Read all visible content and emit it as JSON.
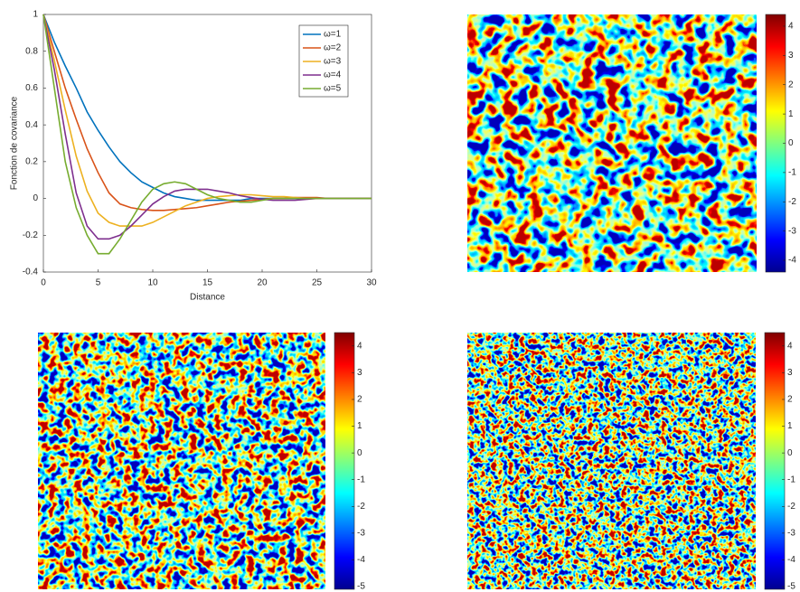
{
  "chart_data": [
    {
      "type": "line",
      "x_label": "Distance",
      "y_label": "Fonction de covariance",
      "x": [
        0,
        1,
        2,
        3,
        4,
        5,
        6,
        7,
        8,
        9,
        10,
        11,
        12,
        13,
        14,
        15,
        16,
        17,
        18,
        19,
        20,
        21,
        22,
        23,
        24,
        25,
        26,
        27,
        28,
        29,
        30
      ],
      "series": [
        {
          "name": "ω=1",
          "color": "#0072bd",
          "values": [
            1,
            0.85,
            0.72,
            0.6,
            0.47,
            0.37,
            0.28,
            0.2,
            0.14,
            0.09,
            0.06,
            0.03,
            0.01,
            0,
            -0.01,
            -0.01,
            -0.01,
            -0.01,
            -0.01,
            0,
            0,
            0,
            0,
            0,
            0,
            0,
            0,
            0,
            0,
            0,
            0
          ]
        },
        {
          "name": "ω=2",
          "color": "#d95319",
          "values": [
            1,
            0.8,
            0.6,
            0.43,
            0.27,
            0.14,
            0.03,
            -0.03,
            -0.05,
            -0.06,
            -0.065,
            -0.065,
            -0.06,
            -0.055,
            -0.05,
            -0.04,
            -0.03,
            -0.02,
            -0.015,
            -0.01,
            -0.005,
            0,
            0,
            0.005,
            0.005,
            0.005,
            0,
            0,
            0,
            0,
            0
          ]
        },
        {
          "name": "ω=3",
          "color": "#edb120",
          "values": [
            1,
            0.75,
            0.48,
            0.23,
            0.04,
            -0.08,
            -0.13,
            -0.15,
            -0.15,
            -0.15,
            -0.13,
            -0.1,
            -0.07,
            -0.04,
            -0.02,
            0,
            0.01,
            0.015,
            0.02,
            0.02,
            0.015,
            0.01,
            0.01,
            0.005,
            0,
            0,
            0,
            0,
            0,
            0,
            0
          ]
        },
        {
          "name": "ω=4",
          "color": "#7e2f8e",
          "values": [
            1,
            0.7,
            0.35,
            0.03,
            -0.15,
            -0.22,
            -0.22,
            -0.2,
            -0.15,
            -0.09,
            -0.03,
            0.01,
            0.04,
            0.05,
            0.05,
            0.05,
            0.04,
            0.03,
            0.015,
            0.005,
            -0.005,
            -0.01,
            -0.01,
            -0.01,
            -0.005,
            0,
            0,
            0,
            0,
            0,
            0
          ]
        },
        {
          "name": "ω=5",
          "color": "#77ac30",
          "values": [
            1,
            0.6,
            0.2,
            -0.05,
            -0.2,
            -0.3,
            -0.3,
            -0.22,
            -0.12,
            -0.02,
            0.05,
            0.08,
            0.09,
            0.08,
            0.05,
            0.02,
            0,
            -0.01,
            -0.02,
            -0.02,
            -0.01,
            0,
            0,
            0,
            0,
            0,
            0,
            0,
            0,
            0,
            0
          ]
        }
      ],
      "xlim": [
        0,
        30
      ],
      "xticks": [
        0,
        5,
        10,
        15,
        20,
        25,
        30
      ],
      "ylim": [
        -0.4,
        1
      ],
      "yticks": [
        -0.4,
        -0.2,
        0,
        0.2,
        0.4,
        0.6,
        0.8,
        1
      ],
      "legend": "northeast"
    },
    {
      "type": "image",
      "colormap": "jet",
      "clim": [
        -4.4,
        4.4
      ],
      "cticks": [
        -4,
        -3,
        -2,
        -1,
        0,
        1,
        2,
        3,
        4
      ]
    },
    {
      "type": "image",
      "colormap": "jet",
      "clim": [
        -5.1,
        4.5
      ],
      "cticks": [
        -5,
        -4,
        -3,
        -2,
        -1,
        0,
        1,
        2,
        3,
        4
      ]
    },
    {
      "type": "image",
      "colormap": "jet",
      "clim": [
        -5.1,
        4.5
      ],
      "cticks": [
        -5,
        -4,
        -3,
        -2,
        -1,
        0,
        1,
        2,
        3,
        4
      ]
    }
  ]
}
